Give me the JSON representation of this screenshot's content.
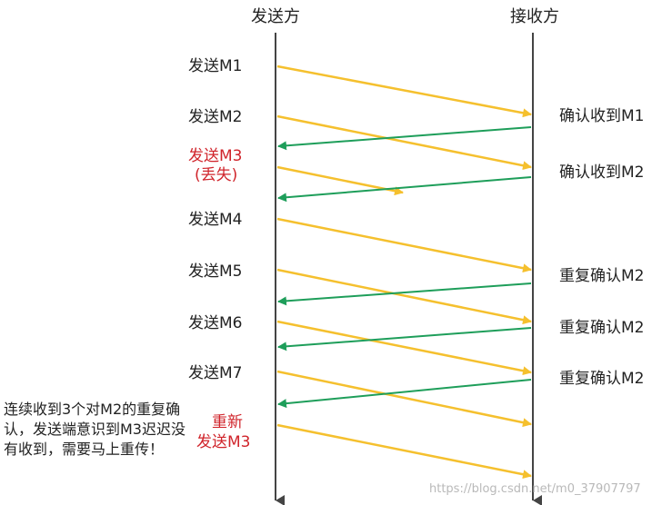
{
  "colors": {
    "send": "#F5C02E",
    "ack": "#1E9E5A",
    "lifeline": "#444444",
    "highlight": "#D0242B"
  },
  "sender": {
    "title": "发送方"
  },
  "receiver": {
    "title": "接收方"
  },
  "sends": [
    {
      "label": "发送M1"
    },
    {
      "label": "发送M2"
    },
    {
      "label": "发送M3",
      "note": "(丢失)",
      "lost": true
    },
    {
      "label": "发送M4"
    },
    {
      "label": "发送M5"
    },
    {
      "label": "发送M6"
    },
    {
      "label": "发送M7"
    },
    {
      "label": "重新",
      "note": "发送M3",
      "resend": true
    }
  ],
  "acks": [
    {
      "label": "确认收到M1"
    },
    {
      "label": "确认收到M2"
    },
    {
      "label": "重复确认M2"
    },
    {
      "label": "重复确认M2"
    },
    {
      "label": "重复确认M2"
    }
  ],
  "side_note": "连续收到3个对M2的重复确认，发送端意识到M3迟迟没有收到，需要马上重传！",
  "watermark": "https://blog.csdn.net/m0_37907797"
}
